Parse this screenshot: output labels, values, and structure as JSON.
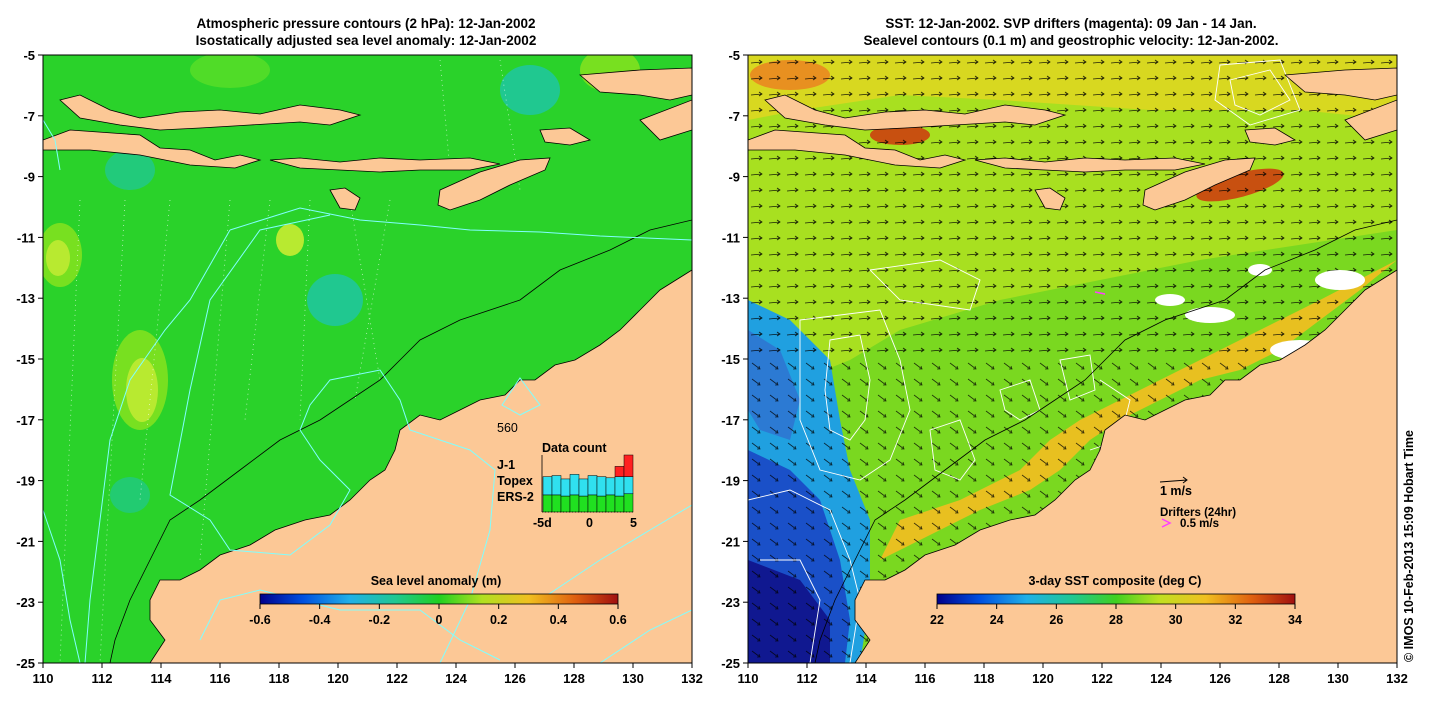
{
  "left_panel": {
    "title_line1": "Atmospheric pressure contours (2 hPa): 12-Jan-2002",
    "title_line2": "Isostatically adjusted sea level anomaly: 12-Jan-2002",
    "x_ticks": [
      "110",
      "112",
      "114",
      "116",
      "118",
      "120",
      "122",
      "124",
      "126",
      "128",
      "130",
      "132"
    ],
    "y_ticks": [
      "-5",
      "-7",
      "-9",
      "-11",
      "-13",
      "-15",
      "-17",
      "-19",
      "-21",
      "-23",
      "-25"
    ],
    "colorbar": {
      "title": "Sea level anomaly (m)",
      "ticks": [
        "-0.6",
        "-0.4",
        "-0.2",
        "0",
        "0.2",
        "0.4",
        "0.6"
      ]
    },
    "data_count": {
      "title": "Data count",
      "max_label": "560",
      "satellites": [
        {
          "name": "J-1",
          "color": "#ff2020"
        },
        {
          "name": "Topex",
          "color": "#30e0f0"
        },
        {
          "name": "ERS-2",
          "color": "#20e020"
        }
      ],
      "x_labels": [
        "-5d",
        "0",
        "5"
      ],
      "ers2": [
        0.3,
        0.3,
        0.28,
        0.3,
        0.28,
        0.3,
        0.28,
        0.3,
        0.28,
        0.32
      ],
      "topex": [
        0.32,
        0.34,
        0.3,
        0.36,
        0.3,
        0.34,
        0.34,
        0.3,
        0.34,
        0.3
      ],
      "j1": [
        0.0,
        0.0,
        0.0,
        0.0,
        0.0,
        0.0,
        0.0,
        0.0,
        0.18,
        0.38
      ]
    }
  },
  "right_panel": {
    "title_line1": "SST: 12-Jan-2002. SVP drifters (magenta): 09 Jan - 14 Jan.",
    "title_line2": "Sealevel contours (0.1 m) and geostrophic velocity: 12-Jan-2002.",
    "x_ticks": [
      "110",
      "112",
      "114",
      "116",
      "118",
      "120",
      "122",
      "124",
      "126",
      "128",
      "130",
      "132"
    ],
    "y_ticks": [
      "-5",
      "-7",
      "-9",
      "-11",
      "-13",
      "-15",
      "-17",
      "-19",
      "-21",
      "-23",
      "-25"
    ],
    "colorbar": {
      "title": "3-day SST composite (deg C)",
      "ticks": [
        "22",
        "24",
        "26",
        "28",
        "30",
        "32",
        "34"
      ]
    },
    "velocity_scale_label": "1 m/s",
    "drifters_label": "Drifters (24hr)",
    "drifter_speed_label": "0.5 m/s"
  },
  "copyright": "© IMOS 10-Feb-2013 15:09 Hobart Time",
  "colors": {
    "land": "#fcc896",
    "ocean_sla": "#2ad22a",
    "sst_warm": "#e8d020",
    "sst_green": "#7ad820",
    "sst_cold": "#1a40c0",
    "pressure_contour": "#80ffff"
  }
}
